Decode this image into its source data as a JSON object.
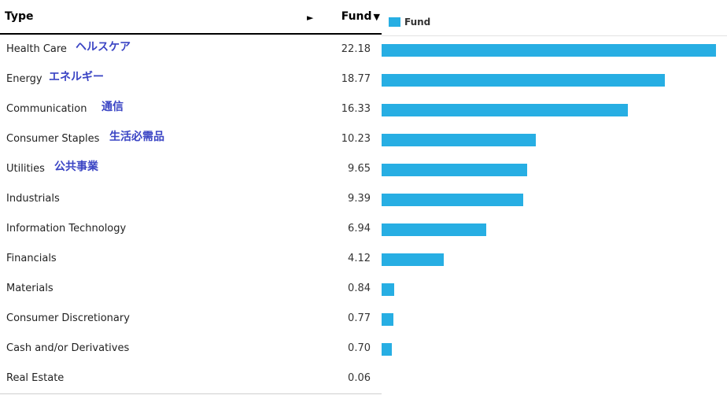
{
  "header": {
    "type_label": "Type",
    "arrow": "►",
    "fund_label": "Fund",
    "fund_caret": "▼"
  },
  "legend": {
    "label": "Fund",
    "color": "#27aee3"
  },
  "chart_data": {
    "type": "bar",
    "orientation": "horizontal",
    "categories": [
      "Health Care",
      "Energy",
      "Communication",
      "Consumer Staples",
      "Utilities",
      "Industrials",
      "Information Technology",
      "Financials",
      "Materials",
      "Consumer Discretionary",
      "Cash and/or Derivatives",
      "Real Estate"
    ],
    "categories_jp": [
      "ヘルスケア",
      "エネルギー",
      "通信",
      "生活必需品",
      "公共事業",
      "",
      "",
      "",
      "",
      "",
      "",
      ""
    ],
    "series": [
      {
        "name": "Fund",
        "color": "#27aee3",
        "values": [
          22.18,
          18.77,
          16.33,
          10.23,
          9.65,
          9.39,
          6.94,
          4.12,
          0.84,
          0.77,
          0.7,
          0.06
        ],
        "display_values": [
          "22.18",
          "18.77",
          "16.33",
          "10.23",
          "9.65",
          "9.39",
          "6.94",
          "4.12",
          "0.84",
          "0.77",
          "0.70",
          "0.06"
        ]
      }
    ],
    "xlim": [
      0,
      22.18
    ],
    "grid": false,
    "legend_position": "top-left"
  }
}
